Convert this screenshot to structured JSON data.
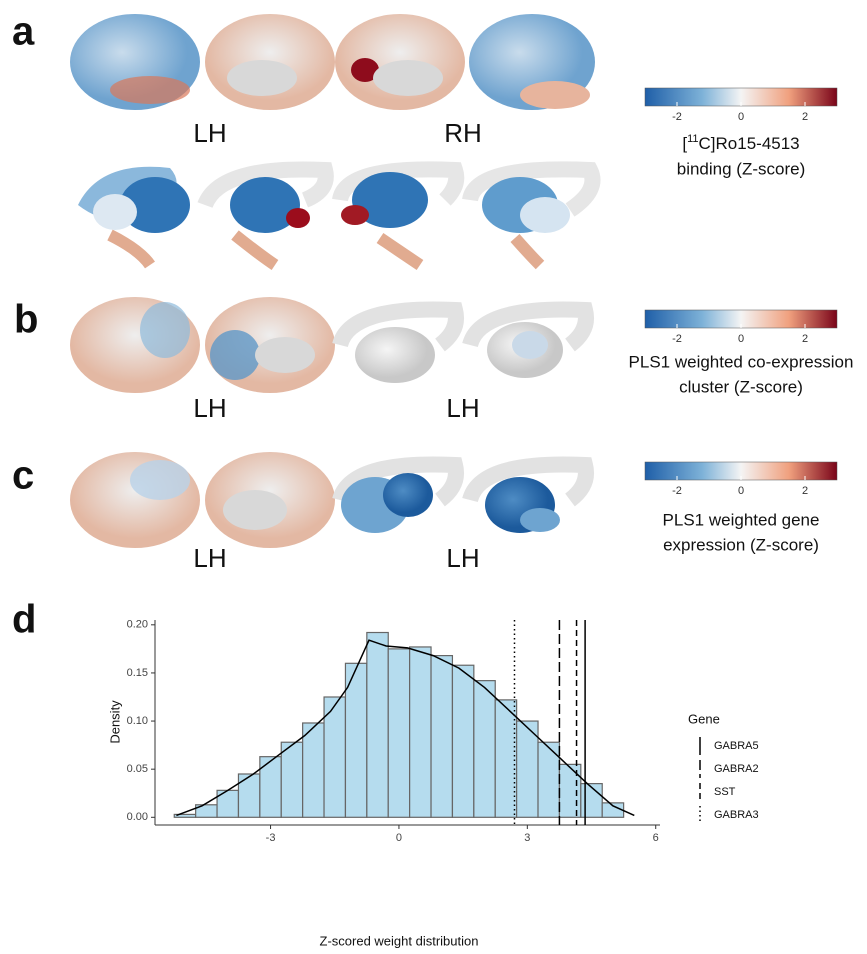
{
  "panel_labels": [
    "a",
    "b",
    "c",
    "d"
  ],
  "panels": [
    {
      "hemisphere_labels": [
        "LH",
        "RH"
      ],
      "colorbar": {
        "label_parts": [
          "[",
          "11",
          "C]Ro15-4513"
        ],
        "label_line2": "binding (Z-score)",
        "lim": [
          -3,
          3
        ],
        "ticks": [
          -2,
          0,
          2
        ]
      }
    },
    {
      "hemisphere_labels": [
        "LH",
        "LH"
      ],
      "colorbar": {
        "label_parts": [
          "PLS1 weighted co-expression"
        ],
        "label_line2": "cluster (Z-score)",
        "lim": [
          -3,
          3
        ],
        "ticks": [
          -2,
          0,
          2
        ]
      }
    },
    {
      "hemisphere_labels": [
        "LH",
        "LH"
      ],
      "colorbar": {
        "label_parts": [
          "PLS1 weighted gene"
        ],
        "label_line2": "expression (Z-score)",
        "lim": [
          -3,
          3
        ],
        "ticks": [
          -2,
          0,
          2
        ]
      }
    }
  ],
  "chart_data": {
    "type": "histogram",
    "x_label": "Z-scored weight distribution",
    "y_label": "Density",
    "bins": [
      -5.25,
      -4.75,
      -4.25,
      -3.75,
      -3.25,
      -2.75,
      -2.25,
      -1.75,
      -1.25,
      -0.75,
      -0.25,
      0.25,
      0.75,
      1.25,
      1.75,
      2.25,
      2.75,
      3.25,
      3.75,
      4.25,
      4.75,
      5.25
    ],
    "values": [
      0.003,
      0.013,
      0.028,
      0.045,
      0.063,
      0.078,
      0.098,
      0.125,
      0.16,
      0.192,
      0.175,
      0.177,
      0.168,
      0.158,
      0.142,
      0.122,
      0.1,
      0.078,
      0.055,
      0.035,
      0.015
    ],
    "color": "#b5dcee",
    "curve": {
      "x": [
        -5.2,
        -4.6,
        -4,
        -3.4,
        -2.8,
        -2.2,
        -1.6,
        -1.2,
        -0.7,
        -0.3,
        0.2,
        0.8,
        1.4,
        2,
        2.6,
        3.2,
        3.8,
        4.4,
        5,
        5.5
      ],
      "y": [
        0.002,
        0.012,
        0.028,
        0.045,
        0.065,
        0.085,
        0.11,
        0.135,
        0.184,
        0.178,
        0.176,
        0.168,
        0.155,
        0.135,
        0.11,
        0.085,
        0.06,
        0.035,
        0.012,
        0.002
      ]
    },
    "legend_title": "Gene",
    "genes": [
      {
        "name": "GABRA5",
        "value": 4.35,
        "dash": "solid"
      },
      {
        "name": "GABRA2",
        "value": 3.75,
        "dash": "longdash"
      },
      {
        "name": "SST",
        "value": 4.15,
        "dash": "dashed"
      },
      {
        "name": "GABRA3",
        "value": 2.7,
        "dash": "dotted"
      }
    ],
    "xlim": [
      -5.7,
      6.1
    ],
    "ylim": [
      -0.008,
      0.205
    ],
    "xticks": [
      -3,
      0,
      3,
      6
    ],
    "yticks": [
      {
        "value": 0,
        "label": "0.00"
      },
      {
        "value": 0.05,
        "label": "0.05"
      },
      {
        "value": 0.1,
        "label": "0.10"
      },
      {
        "value": 0.15,
        "label": "0.15"
      },
      {
        "value": 0.2,
        "label": "0.20"
      }
    ]
  }
}
